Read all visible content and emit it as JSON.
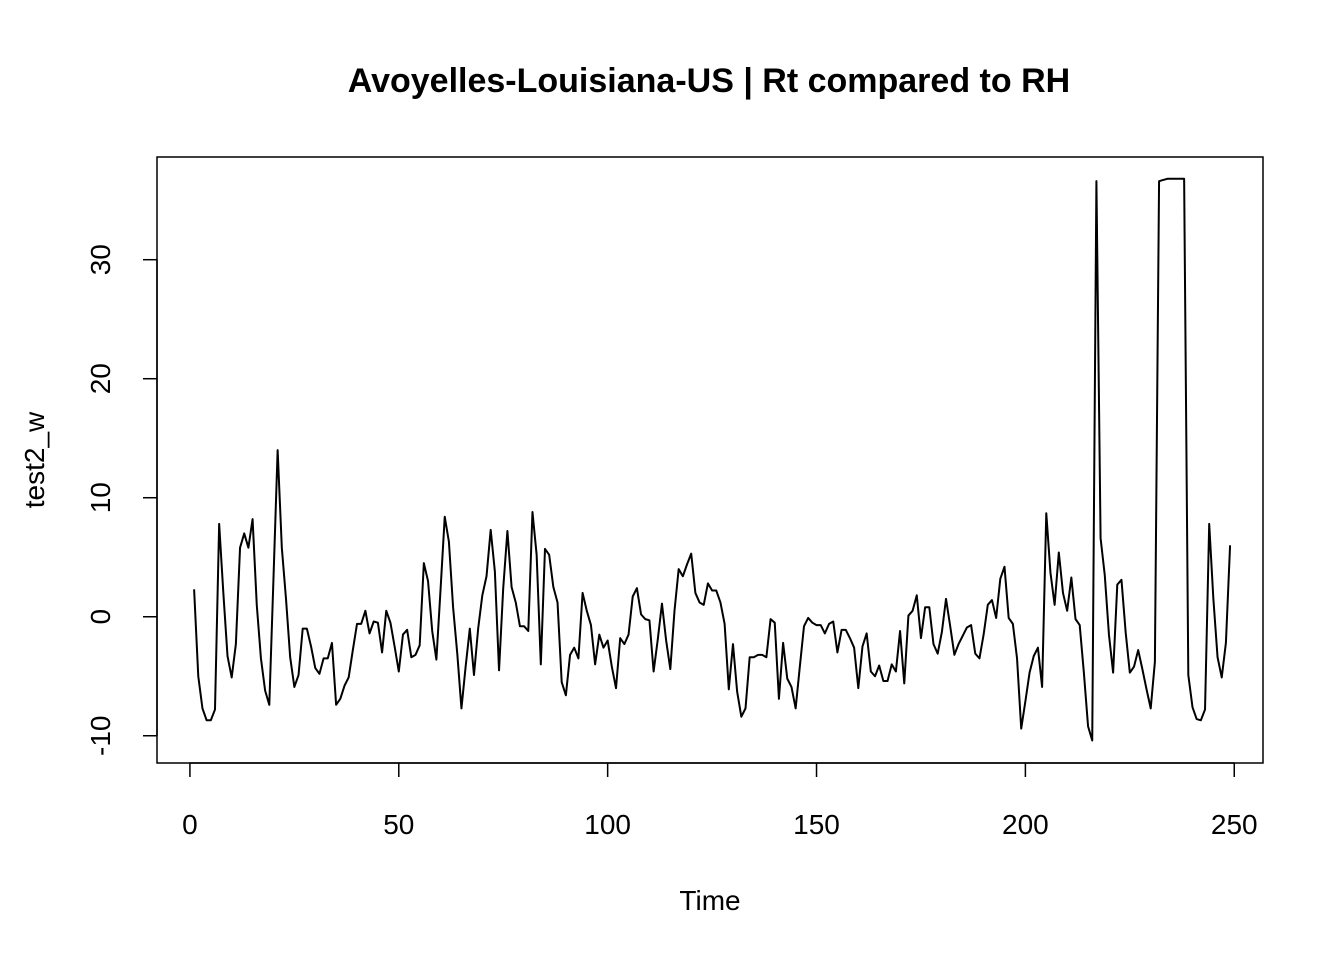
{
  "chart_data": {
    "type": "line",
    "title": "Avoyelles-Louisiana-US | Rt compared to RH",
    "xlabel": "Time",
    "ylabel": "test2_w",
    "xlim": [
      -7.88,
      256.88
    ],
    "ylim": [
      -12.29,
      38.63
    ],
    "x_ticks": [
      0,
      50,
      100,
      150,
      200,
      250
    ],
    "y_ticks": [
      -10,
      0,
      10,
      20,
      30
    ],
    "grid": false,
    "line_color": "#000000",
    "series": [
      {
        "x_start": 1,
        "values": [
          2.3,
          -5.0,
          -7.7,
          -8.7,
          -8.7,
          -7.8,
          7.8,
          2.0,
          -3.3,
          -5.1,
          -2.3,
          5.8,
          7.0,
          5.8,
          8.2,
          1.0,
          -3.5,
          -6.2,
          -7.4,
          3.2,
          14.0,
          5.8,
          1.5,
          -3.4,
          -5.9,
          -4.9,
          -1.0,
          -1.0,
          -2.5,
          -4.3,
          -4.8,
          -3.5,
          -3.5,
          -2.2,
          -7.4,
          -6.9,
          -5.8,
          -5.1,
          -2.8,
          -0.6,
          -0.6,
          0.5,
          -1.4,
          -0.4,
          -0.5,
          -3.0,
          0.5,
          -0.5,
          -2.5,
          -4.6,
          -1.5,
          -1.1,
          -3.4,
          -3.2,
          -2.4,
          4.5,
          3.0,
          -1.2,
          -3.6,
          2.3,
          8.4,
          6.3,
          0.8,
          -3.1,
          -7.7,
          -4.2,
          -1.0,
          -4.9,
          -1.0,
          1.8,
          3.4,
          7.3,
          3.8,
          -4.5,
          2.4,
          7.2,
          2.5,
          1.2,
          -0.8,
          -0.8,
          -1.2,
          8.8,
          5.2,
          -4.0,
          5.7,
          5.2,
          2.5,
          1.2,
          -5.5,
          -6.6,
          -3.2,
          -2.6,
          -3.5,
          2.0,
          0.5,
          -0.7,
          -4.0,
          -1.5,
          -2.6,
          -2.0,
          -4.2,
          -6.0,
          -1.8,
          -2.3,
          -1.5,
          1.7,
          2.4,
          0.2,
          -0.2,
          -0.3,
          -4.6,
          -1.9,
          1.1,
          -2.0,
          -4.4,
          0.5,
          4.0,
          3.4,
          4.4,
          5.3,
          2.0,
          1.2,
          1.0,
          2.8,
          2.2,
          2.2,
          1.2,
          -0.6,
          -6.1,
          -2.3,
          -6.3,
          -8.4,
          -7.7,
          -3.4,
          -3.4,
          -3.2,
          -3.2,
          -3.4,
          -0.2,
          -0.5,
          -6.9,
          -2.2,
          -5.2,
          -5.9,
          -7.7,
          -4.2,
          -0.8,
          -0.1,
          -0.5,
          -0.7,
          -0.7,
          -1.4,
          -0.6,
          -0.4,
          -3.0,
          -1.1,
          -1.1,
          -1.8,
          -2.6,
          -6.0,
          -2.5,
          -1.4,
          -4.6,
          -5.0,
          -4.1,
          -5.4,
          -5.4,
          -4.0,
          -4.6,
          -1.2,
          -5.6,
          0.1,
          0.5,
          1.8,
          -1.8,
          0.8,
          0.8,
          -2.3,
          -3.1,
          -1.3,
          1.5,
          -0.8,
          -3.2,
          -2.3,
          -1.6,
          -0.9,
          -0.7,
          -3.1,
          -3.5,
          -1.5,
          1.0,
          1.4,
          -0.1,
          3.2,
          4.2,
          -0.1,
          -0.6,
          -3.5,
          -9.4,
          -7.1,
          -4.7,
          -3.3,
          -2.6,
          -5.9,
          8.7,
          3.7,
          1.0,
          5.4,
          2.0,
          0.5,
          3.3,
          -0.2,
          -0.7,
          -4.7,
          -9.2,
          -10.4,
          36.6,
          6.6,
          3.5,
          -1.5,
          -4.7,
          2.7,
          3.1,
          -1.3,
          -4.7,
          -4.2,
          -2.8,
          -4.4,
          -6.1,
          -7.7,
          -3.8,
          36.6,
          36.7,
          36.8,
          36.8,
          36.8,
          36.8,
          36.8,
          -4.9,
          -7.6,
          -8.6,
          -8.7,
          -7.8,
          7.8,
          1.5,
          -3.4,
          -5.1,
          -2.2,
          6.0
        ]
      }
    ]
  }
}
